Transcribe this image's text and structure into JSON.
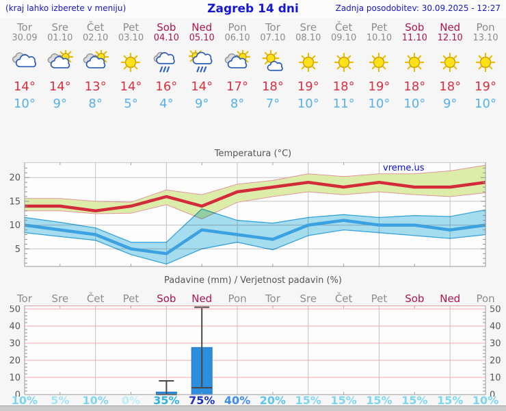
{
  "header": {
    "left": "(kraj lahko izberete v meniju)",
    "title": "Zagreb 14 dni",
    "right": "Zadnja posodobitev: 30.09.2025 - 12:27"
  },
  "forecast": {
    "days": [
      {
        "name": "Tor",
        "date": "30.09",
        "weekend": false,
        "icon": "cloudy",
        "tmax": "14°",
        "tmin": "10°"
      },
      {
        "name": "Sre",
        "date": "01.10",
        "weekend": false,
        "icon": "sun-cloud",
        "tmax": "14°",
        "tmin": "9°"
      },
      {
        "name": "Čet",
        "date": "02.10",
        "weekend": false,
        "icon": "sun-cloud",
        "tmax": "13°",
        "tmin": "8°"
      },
      {
        "name": "Pet",
        "date": "03.10",
        "weekend": false,
        "icon": "sunny",
        "tmax": "14°",
        "tmin": "5°"
      },
      {
        "name": "Sob",
        "date": "04.10",
        "weekend": true,
        "icon": "rain",
        "tmax": "16°",
        "tmin": "4°"
      },
      {
        "name": "Ned",
        "date": "05.10",
        "weekend": true,
        "icon": "sun-rain",
        "tmax": "14°",
        "tmin": "9°"
      },
      {
        "name": "Pon",
        "date": "06.10",
        "weekend": false,
        "icon": "sun-cloud",
        "tmax": "17°",
        "tmin": "8°"
      },
      {
        "name": "Tor",
        "date": "07.10",
        "weekend": false,
        "icon": "mostly-sunny",
        "tmax": "18°",
        "tmin": "7°"
      },
      {
        "name": "Sre",
        "date": "08.10",
        "weekend": false,
        "icon": "sunny",
        "tmax": "19°",
        "tmin": "10°"
      },
      {
        "name": "Čet",
        "date": "09.10",
        "weekend": false,
        "icon": "sunny",
        "tmax": "18°",
        "tmin": "11°"
      },
      {
        "name": "Pet",
        "date": "10.10",
        "weekend": false,
        "icon": "sunny",
        "tmax": "19°",
        "tmin": "10°"
      },
      {
        "name": "Sob",
        "date": "11.10",
        "weekend": true,
        "icon": "sunny",
        "tmax": "18°",
        "tmin": "10°"
      },
      {
        "name": "Ned",
        "date": "12.10",
        "weekend": true,
        "icon": "sunny",
        "tmax": "18°",
        "tmin": "9°"
      },
      {
        "name": "Pon",
        "date": "13.10",
        "weekend": false,
        "icon": "sunny",
        "tmax": "19°",
        "tmin": "10°"
      }
    ]
  },
  "chart_data": [
    {
      "type": "line",
      "title": "Temperatura (°C)",
      "watermark": "vreme.us",
      "categories": [
        "Tor 30.09",
        "Sre 01.10",
        "Čet 02.10",
        "Pet 03.10",
        "Sob 04.10",
        "Ned 05.10",
        "Pon 06.10",
        "Tor 07.10",
        "Sre 08.10",
        "Čet 09.10",
        "Pet 10.10",
        "Sob 11.10",
        "Ned 12.10",
        "Pon 13.10"
      ],
      "ylim": [
        1.3,
        23.2
      ],
      "yticks": [
        5,
        10,
        15,
        20
      ],
      "grid": "on",
      "legend": "none",
      "series": [
        {
          "name": "t-max",
          "color": "#d22b3a",
          "values": [
            14,
            14,
            13,
            14,
            16,
            14,
            17,
            18,
            19,
            18,
            19,
            18,
            18,
            19
          ]
        },
        {
          "name": "t-min",
          "color": "#3ba1e0",
          "values": [
            10,
            9,
            8,
            5,
            4,
            9,
            8,
            7,
            10,
            11,
            10,
            10,
            9,
            10
          ]
        },
        {
          "name": "t-max-range",
          "fill": "#dcedaa",
          "edge": "#e59598",
          "upper": [
            15.6,
            15.6,
            15.0,
            14.8,
            17.4,
            16.4,
            18.6,
            19.4,
            20.8,
            20.2,
            20.8,
            20.8,
            21.4,
            22.6
          ],
          "lower": [
            13.0,
            13.0,
            12.4,
            12.5,
            14.3,
            11.3,
            14.8,
            16.0,
            17.0,
            16.4,
            17.0,
            16.4,
            16.0,
            16.8
          ]
        },
        {
          "name": "t-min-range",
          "fill": "#a6dff0",
          "edge": "#36a4de",
          "upper": [
            11.6,
            10.6,
            9.4,
            6.4,
            6.4,
            13.4,
            11.0,
            10.4,
            11.6,
            12.2,
            11.6,
            12.0,
            11.8,
            13.2
          ],
          "lower": [
            8.4,
            7.6,
            6.8,
            3.8,
            1.8,
            5.0,
            6.4,
            4.8,
            7.8,
            9.0,
            8.4,
            7.8,
            7.2,
            8.0
          ]
        }
      ]
    },
    {
      "type": "bar",
      "title": "Padavine (mm) / Verjetnost padavin (%)",
      "categories": [
        "Tor",
        "Sre",
        "Čet",
        "Pet",
        "Sob",
        "Ned",
        "Pon",
        "Tor",
        "Sre",
        "Čet",
        "Pet",
        "Sob",
        "Ned",
        "Pon"
      ],
      "values_mm": [
        0,
        0,
        0,
        0,
        1.5,
        27.5,
        0,
        0,
        0,
        0,
        0,
        0,
        0,
        0
      ],
      "whiskers": [
        null,
        null,
        null,
        null,
        {
          "low": 0,
          "high": 8
        },
        {
          "low": 4,
          "high": 51
        },
        null,
        null,
        null,
        null,
        null,
        null,
        null,
        null
      ],
      "probabilities_pct": [
        "10%",
        "5%",
        "10%",
        "0%",
        "35%",
        "75%",
        "40%",
        "20%",
        "15%",
        "15%",
        "15%",
        "15%",
        "15%",
        "10%"
      ],
      "prob_colors": [
        "#7fd5f1",
        "#a3e4f6",
        "#7fd5f1",
        "#bceefa",
        "#2fb1ea",
        "#1b32c3",
        "#3d8cee",
        "#5fc6ef",
        "#7ed7f2",
        "#7ed7f2",
        "#7ed7f2",
        "#7ed7f2",
        "#7ed7f2",
        "#7fd5f1"
      ],
      "ylim": [
        0,
        52
      ],
      "yticks": [
        0,
        10,
        20,
        30,
        40,
        50
      ],
      "bar_color": "#2d8ede",
      "bar_edge": "#2176c7",
      "grid": "on"
    }
  ],
  "colors": {
    "header_text": "#1418d2",
    "weekend": "#b0134e",
    "weekday": "#8c8c8c",
    "tmax_text": "#dc2f3e",
    "tmin_text": "#56b0ea",
    "grid_gray": "#c3c3c3",
    "grid_pink": "#f2aab2",
    "border": "#9a9a9a",
    "plot_bg": "#fdfdfd"
  }
}
